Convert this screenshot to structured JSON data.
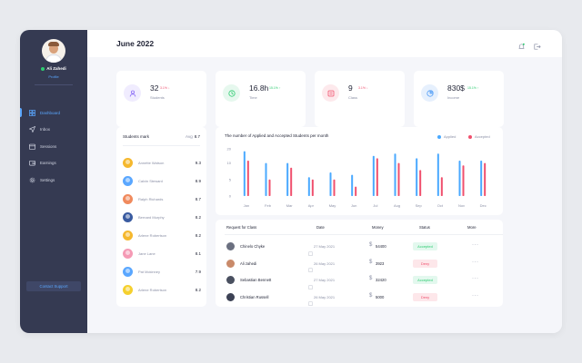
{
  "sidebar": {
    "user_name": "Ali Zahedi",
    "user_role": "Profile",
    "items": [
      {
        "label": "Dashboard",
        "icon": "grid-icon",
        "active": true
      },
      {
        "label": "Inbox",
        "icon": "send-icon",
        "active": false
      },
      {
        "label": "Sessions",
        "icon": "calendar-icon",
        "active": false
      },
      {
        "label": "Earnings",
        "icon": "wallet-icon",
        "active": false
      },
      {
        "label": "Settings",
        "icon": "gear-icon",
        "active": false
      }
    ],
    "support_label": "Contact Support"
  },
  "header": {
    "title": "June 2022",
    "icons": [
      "bell-icon",
      "logout-icon"
    ]
  },
  "stats": [
    {
      "value": "32",
      "label": "Students",
      "badge": "3.1% ↓",
      "trend": "down",
      "color": "#8b6cf6",
      "bg": "#f0ecfe",
      "icon": "user-icon"
    },
    {
      "value": "16.8h",
      "label": "Time",
      "badge": "15.1% ↑",
      "trend": "up",
      "color": "#2ecc71",
      "bg": "#e6f8ee",
      "icon": "clock-icon"
    },
    {
      "value": "9",
      "label": "Class",
      "badge": "3.1% ↓",
      "trend": "down",
      "color": "#f0506e",
      "bg": "#fde9ec",
      "icon": "class-icon"
    },
    {
      "value": "830$",
      "label": "Income",
      "badge": "15.1% ↑",
      "trend": "up",
      "color": "#4f9cf6",
      "bg": "#e6f0fd",
      "icon": "pie-icon"
    }
  ],
  "marks": {
    "title": "Students mark",
    "avg_label": "Avg",
    "avg_value": "8.7",
    "rows": [
      {
        "name": "Annette Watson",
        "score": "9.3",
        "color": "#f5b82e"
      },
      {
        "name": "Calvin Steward",
        "score": "8.9",
        "color": "#5aa7ff"
      },
      {
        "name": "Ralph Richards",
        "score": "8.7",
        "color": "#f08a5d"
      },
      {
        "name": "Bernard Murphy",
        "score": "8.2",
        "color": "#3a5ba0"
      },
      {
        "name": "Arlene Robertson",
        "score": "8.2",
        "color": "#f5b82e"
      },
      {
        "name": "Jane Lane",
        "score": "8.1",
        "color": "#f59ab5"
      },
      {
        "name": "Pat Mckinney",
        "score": "7.9",
        "color": "#5aa7ff"
      },
      {
        "name": "Arlene Robertson",
        "score": "8.2",
        "color": "#f5d02e"
      }
    ]
  },
  "chart_data": {
    "type": "bar",
    "title": "The number of Applied and Accepted Students per month",
    "categories": [
      "Jan",
      "Feb",
      "Mar",
      "Apr",
      "May",
      "Jun",
      "Jul",
      "Aug",
      "Sep",
      "Oct",
      "Nov",
      "Dec"
    ],
    "series": [
      {
        "name": "Applied",
        "color": "#4aa9ff",
        "values": [
          19,
          14,
          14,
          8,
          10,
          9,
          17,
          18,
          16,
          18,
          15,
          15
        ]
      },
      {
        "name": "Accepted",
        "color": "#f0506e",
        "values": [
          15,
          7,
          12,
          7,
          7,
          4,
          16,
          14,
          11,
          8,
          13,
          14
        ]
      }
    ],
    "yticks": [
      "0",
      "5",
      "10",
      "20"
    ],
    "ylim": [
      0,
      20
    ]
  },
  "requests": {
    "headers": [
      "Request for Class",
      "Date",
      "Money",
      "Status",
      "More"
    ],
    "rows": [
      {
        "name": "Chinelo Chyke",
        "date": "27 May 2021",
        "money": "54400",
        "status": "Accepted",
        "ok": true,
        "color": "#6b7080"
      },
      {
        "name": "Ali zahedi",
        "date": "26 May 2021",
        "money": "3923",
        "status": "Deny",
        "ok": false,
        "color": "#c98a6a"
      },
      {
        "name": "Sebastian Bennett",
        "date": "27 May 2021",
        "money": "32420",
        "status": "Accepted",
        "ok": true,
        "color": "#4a5060"
      },
      {
        "name": "Christian Russell",
        "date": "26 May 2021",
        "money": "5000",
        "status": "Deny",
        "ok": false,
        "color": "#3d4255"
      }
    ],
    "more_glyph": "···"
  }
}
